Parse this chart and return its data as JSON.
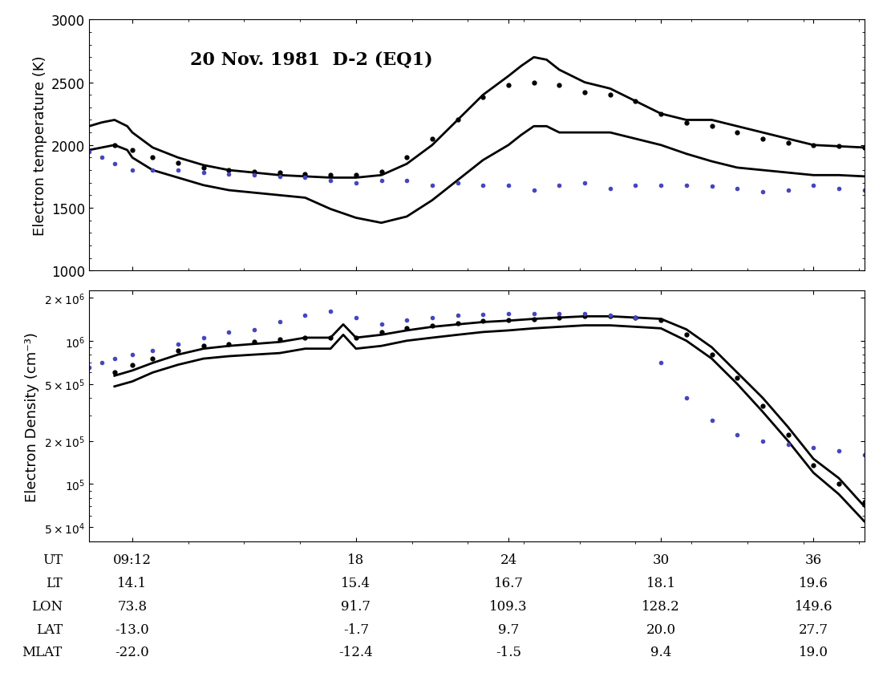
{
  "title": "20 Nov. 1981  D-2 (EQ1)",
  "xlabel_ut": "UT",
  "xticks": [
    9.2,
    18,
    24,
    30,
    36
  ],
  "xtick_labels": [
    "09:12",
    "18",
    "24",
    "30",
    "36"
  ],
  "xmin": 7.5,
  "xmax": 38,
  "footer_rows": {
    "UT": [
      "09:12",
      "18",
      "24",
      "30",
      "36"
    ],
    "LT": [
      "14.1",
      "15.4",
      "16.7",
      "18.1",
      "19.6"
    ],
    "LON": [
      "73.8",
      "91.7",
      "109.3",
      "128.2",
      "149.6"
    ],
    "LAT": [
      "-13.0",
      "-1.7",
      "9.7",
      "20.0",
      "27.7"
    ],
    "MLAT": [
      "-22.0",
      "-12.4",
      "-1.5",
      "9.4",
      "19.0"
    ]
  },
  "temp_ylim": [
    1000,
    3000
  ],
  "temp_yticks": [
    1000,
    1500,
    2000,
    2500,
    3000
  ],
  "temp_ylabel": "Electron temperature (K)",
  "dens_ylim_log": [
    4.6,
    6.35
  ],
  "dens_ylabel": "Electron Density (cm⁻³)",
  "temp_upper_x": [
    7.5,
    8.0,
    8.5,
    9.0,
    9.2,
    10,
    11,
    12,
    13,
    14,
    15,
    16,
    17,
    18,
    19,
    20,
    21,
    22,
    23,
    24,
    24.5,
    25,
    25.5,
    26,
    27,
    28,
    29,
    30,
    31,
    32,
    33,
    34,
    35,
    36,
    37,
    38
  ],
  "temp_upper_y": [
    2150,
    2180,
    2200,
    2150,
    2100,
    1980,
    1900,
    1840,
    1800,
    1780,
    1760,
    1750,
    1740,
    1740,
    1760,
    1850,
    2000,
    2200,
    2400,
    2550,
    2630,
    2700,
    2680,
    2600,
    2500,
    2450,
    2350,
    2250,
    2200,
    2200,
    2150,
    2100,
    2050,
    2000,
    1990,
    1980
  ],
  "temp_lower_x": [
    7.5,
    8.0,
    8.5,
    9.0,
    9.2,
    10,
    11,
    12,
    13,
    14,
    15,
    16,
    17,
    18,
    19,
    20,
    21,
    22,
    23,
    24,
    24.5,
    25,
    25.5,
    26,
    27,
    28,
    29,
    30,
    31,
    32,
    33,
    34,
    35,
    36,
    37,
    38
  ],
  "temp_lower_y": [
    1960,
    1980,
    2000,
    1960,
    1900,
    1800,
    1740,
    1680,
    1640,
    1620,
    1600,
    1580,
    1490,
    1420,
    1380,
    1430,
    1560,
    1720,
    1880,
    2000,
    2080,
    2150,
    2150,
    2100,
    2100,
    2100,
    2050,
    2000,
    1930,
    1870,
    1820,
    1800,
    1780,
    1760,
    1760,
    1750
  ],
  "temp_dots_black_x": [
    8.5,
    9.2,
    10,
    11,
    12,
    13,
    14,
    15,
    16,
    17,
    18,
    19,
    20,
    21,
    22,
    23,
    24,
    25,
    26,
    27,
    28,
    29,
    30,
    31,
    32,
    33,
    34,
    35,
    36,
    37,
    38
  ],
  "temp_dots_black_y": [
    2000,
    1960,
    1900,
    1860,
    1820,
    1800,
    1790,
    1780,
    1770,
    1760,
    1760,
    1790,
    1900,
    2050,
    2200,
    2380,
    2480,
    2500,
    2480,
    2420,
    2400,
    2350,
    2250,
    2180,
    2150,
    2100,
    2050,
    2020,
    2000,
    1990,
    1980
  ],
  "temp_dots_blue_x": [
    7.5,
    8.0,
    8.5,
    9.2,
    10,
    11,
    12,
    13,
    14,
    15,
    16,
    17,
    18,
    19,
    20,
    21,
    22,
    23,
    24,
    25,
    26,
    27,
    28,
    29,
    30,
    31,
    32,
    33,
    34,
    35,
    36,
    37,
    38
  ],
  "temp_dots_blue_y": [
    1950,
    1900,
    1850,
    1800,
    1800,
    1800,
    1780,
    1770,
    1760,
    1750,
    1740,
    1720,
    1700,
    1720,
    1720,
    1680,
    1700,
    1680,
    1680,
    1640,
    1680,
    1700,
    1650,
    1680,
    1680,
    1680,
    1670,
    1650,
    1630,
    1640,
    1680,
    1650,
    1640
  ],
  "dens_upper_x": [
    8.5,
    9.2,
    10,
    11,
    12,
    13,
    14,
    15,
    16,
    17,
    17.5,
    18,
    19,
    20,
    21,
    22,
    23,
    24,
    24.5,
    25,
    26,
    27,
    28,
    29,
    30,
    31,
    32,
    33,
    34,
    35,
    36,
    37,
    38
  ],
  "dens_upper_y": [
    570000.0,
    620000.0,
    700000.0,
    800000.0,
    880000.0,
    920000.0,
    950000.0,
    980000.0,
    1050000.0,
    1050000.0,
    1300000.0,
    1050000.0,
    1100000.0,
    1180000.0,
    1250000.0,
    1300000.0,
    1350000.0,
    1380000.0,
    1400000.0,
    1420000.0,
    1450000.0,
    1480000.0,
    1480000.0,
    1450000.0,
    1420000.0,
    1200000.0,
    900000.0,
    600000.0,
    400000.0,
    250000.0,
    150000.0,
    110000.0,
    70000.0
  ],
  "dens_lower_x": [
    8.5,
    9.2,
    10,
    11,
    12,
    13,
    14,
    15,
    16,
    17,
    17.5,
    18,
    19,
    20,
    21,
    22,
    23,
    24,
    24.5,
    25,
    26,
    27,
    28,
    29,
    30,
    31,
    32,
    33,
    34,
    35,
    36,
    37,
    38
  ],
  "dens_lower_y": [
    480000.0,
    520000.0,
    600000.0,
    680000.0,
    750000.0,
    780000.0,
    800000.0,
    820000.0,
    880000.0,
    880000.0,
    1100000.0,
    880000.0,
    920000.0,
    1000000.0,
    1050000.0,
    1100000.0,
    1150000.0,
    1180000.0,
    1200000.0,
    1220000.0,
    1250000.0,
    1280000.0,
    1280000.0,
    1250000.0,
    1220000.0,
    1000000.0,
    750000.0,
    500000.0,
    320000.0,
    200000.0,
    120000.0,
    85000.0,
    55000.0
  ],
  "dens_dots_black_x": [
    8.5,
    9.2,
    10,
    11,
    12,
    13,
    14,
    15,
    16,
    17,
    18,
    19,
    20,
    21,
    22,
    23,
    24,
    25,
    26,
    27,
    28,
    29,
    30,
    31,
    32,
    33,
    34,
    35,
    36,
    37,
    38
  ],
  "dens_dots_black_y": [
    600000.0,
    680000.0,
    750000.0,
    850000.0,
    920000.0,
    950000.0,
    980000.0,
    1020000.0,
    1050000.0,
    1050000.0,
    1050000.0,
    1150000.0,
    1220000.0,
    1280000.0,
    1330000.0,
    1380000.0,
    1400000.0,
    1420000.0,
    1450000.0,
    1480000.0,
    1480000.0,
    1450000.0,
    1400000.0,
    1100000.0,
    800000.0,
    550000.0,
    350000.0,
    220000.0,
    135000.0,
    100000.0,
    75000.0
  ],
  "dens_dots_blue_x": [
    7.5,
    8.0,
    8.5,
    9.2,
    10,
    11,
    12,
    13,
    14,
    15,
    16,
    17,
    18,
    19,
    20,
    21,
    22,
    23,
    24,
    25,
    26,
    27,
    28,
    29,
    30,
    31,
    32,
    33,
    34,
    35,
    36,
    37,
    38
  ],
  "dens_dots_blue_y": [
    650000.0,
    700000.0,
    750000.0,
    800000.0,
    850000.0,
    950000.0,
    1050000.0,
    1150000.0,
    1200000.0,
    1350000.0,
    1500000.0,
    1600000.0,
    1450000.0,
    1300000.0,
    1400000.0,
    1450000.0,
    1500000.0,
    1520000.0,
    1550000.0,
    1550000.0,
    1550000.0,
    1550000.0,
    1500000.0,
    1450000.0,
    700000.0,
    400000.0,
    280000.0,
    220000.0,
    200000.0,
    190000.0,
    180000.0,
    170000.0,
    160000.0
  ]
}
